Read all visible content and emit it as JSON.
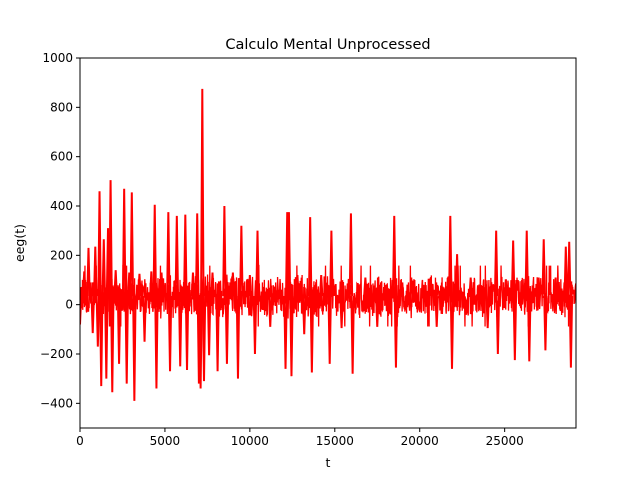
{
  "chart_data": {
    "type": "line",
    "title": "Calculo Mental Unprocessed",
    "xlabel": "t",
    "ylabel": "eeg(t)",
    "xlim": [
      0,
      29200
    ],
    "ylim": [
      -500,
      1000
    ],
    "x_ticks": [
      0,
      5000,
      10000,
      15000,
      20000,
      25000
    ],
    "y_ticks": [
      -400,
      -200,
      0,
      200,
      400,
      600,
      800,
      1000
    ],
    "grid": false,
    "legend": "none",
    "series": [
      {
        "color": "#ff0000",
        "sample_count": 29200,
        "baseline": {
          "center": 35,
          "low": -60,
          "high": 130
        },
        "points": [
          [
            0,
            -80
          ],
          [
            250,
            135
          ],
          [
            500,
            230
          ],
          [
            750,
            -115
          ],
          [
            900,
            235
          ],
          [
            1050,
            -170
          ],
          [
            1150,
            460
          ],
          [
            1250,
            -330
          ],
          [
            1400,
            265
          ],
          [
            1550,
            -300
          ],
          [
            1650,
            310
          ],
          [
            1800,
            505
          ],
          [
            1900,
            -355
          ],
          [
            2100,
            140
          ],
          [
            2300,
            -240
          ],
          [
            2600,
            470
          ],
          [
            2750,
            -320
          ],
          [
            2900,
            130
          ],
          [
            3050,
            455
          ],
          [
            3200,
            -390
          ],
          [
            3500,
            125
          ],
          [
            3800,
            -150
          ],
          [
            4200,
            135
          ],
          [
            4400,
            405
          ],
          [
            4500,
            -340
          ],
          [
            4800,
            130
          ],
          [
            5200,
            375
          ],
          [
            5300,
            -270
          ],
          [
            5700,
            360
          ],
          [
            5900,
            -250
          ],
          [
            6200,
            365
          ],
          [
            6300,
            -265
          ],
          [
            6650,
            130
          ],
          [
            6900,
            370
          ],
          [
            7000,
            -320
          ],
          [
            7100,
            -340
          ],
          [
            7200,
            875
          ],
          [
            7300,
            -310
          ],
          [
            7600,
            -205
          ],
          [
            7800,
            130
          ],
          [
            8100,
            -270
          ],
          [
            8500,
            400
          ],
          [
            8650,
            -240
          ],
          [
            9000,
            130
          ],
          [
            9300,
            -300
          ],
          [
            9500,
            320
          ],
          [
            10000,
            120
          ],
          [
            10300,
            -200
          ],
          [
            10450,
            300
          ],
          [
            11200,
            -90
          ],
          [
            12100,
            -260
          ],
          [
            12200,
            375
          ],
          [
            12300,
            375
          ],
          [
            12450,
            -290
          ],
          [
            12800,
            120
          ],
          [
            13200,
            -120
          ],
          [
            13550,
            355
          ],
          [
            13650,
            -275
          ],
          [
            14200,
            120
          ],
          [
            14700,
            -240
          ],
          [
            14800,
            300
          ],
          [
            15400,
            -95
          ],
          [
            15950,
            370
          ],
          [
            16050,
            -280
          ],
          [
            16800,
            110
          ],
          [
            17500,
            -90
          ],
          [
            18500,
            360
          ],
          [
            18600,
            -255
          ],
          [
            19500,
            110
          ],
          [
            21000,
            -90
          ],
          [
            21800,
            360
          ],
          [
            21900,
            -260
          ],
          [
            22200,
            205
          ],
          [
            23000,
            110
          ],
          [
            24000,
            -95
          ],
          [
            24500,
            300
          ],
          [
            24600,
            -200
          ],
          [
            25500,
            260
          ],
          [
            25600,
            -225
          ],
          [
            26300,
            300
          ],
          [
            26450,
            -230
          ],
          [
            27000,
            110
          ],
          [
            27300,
            265
          ],
          [
            27400,
            -185
          ],
          [
            28000,
            110
          ],
          [
            28600,
            235
          ],
          [
            28800,
            255
          ],
          [
            28900,
            -255
          ],
          [
            29200,
            80
          ]
        ]
      }
    ]
  }
}
